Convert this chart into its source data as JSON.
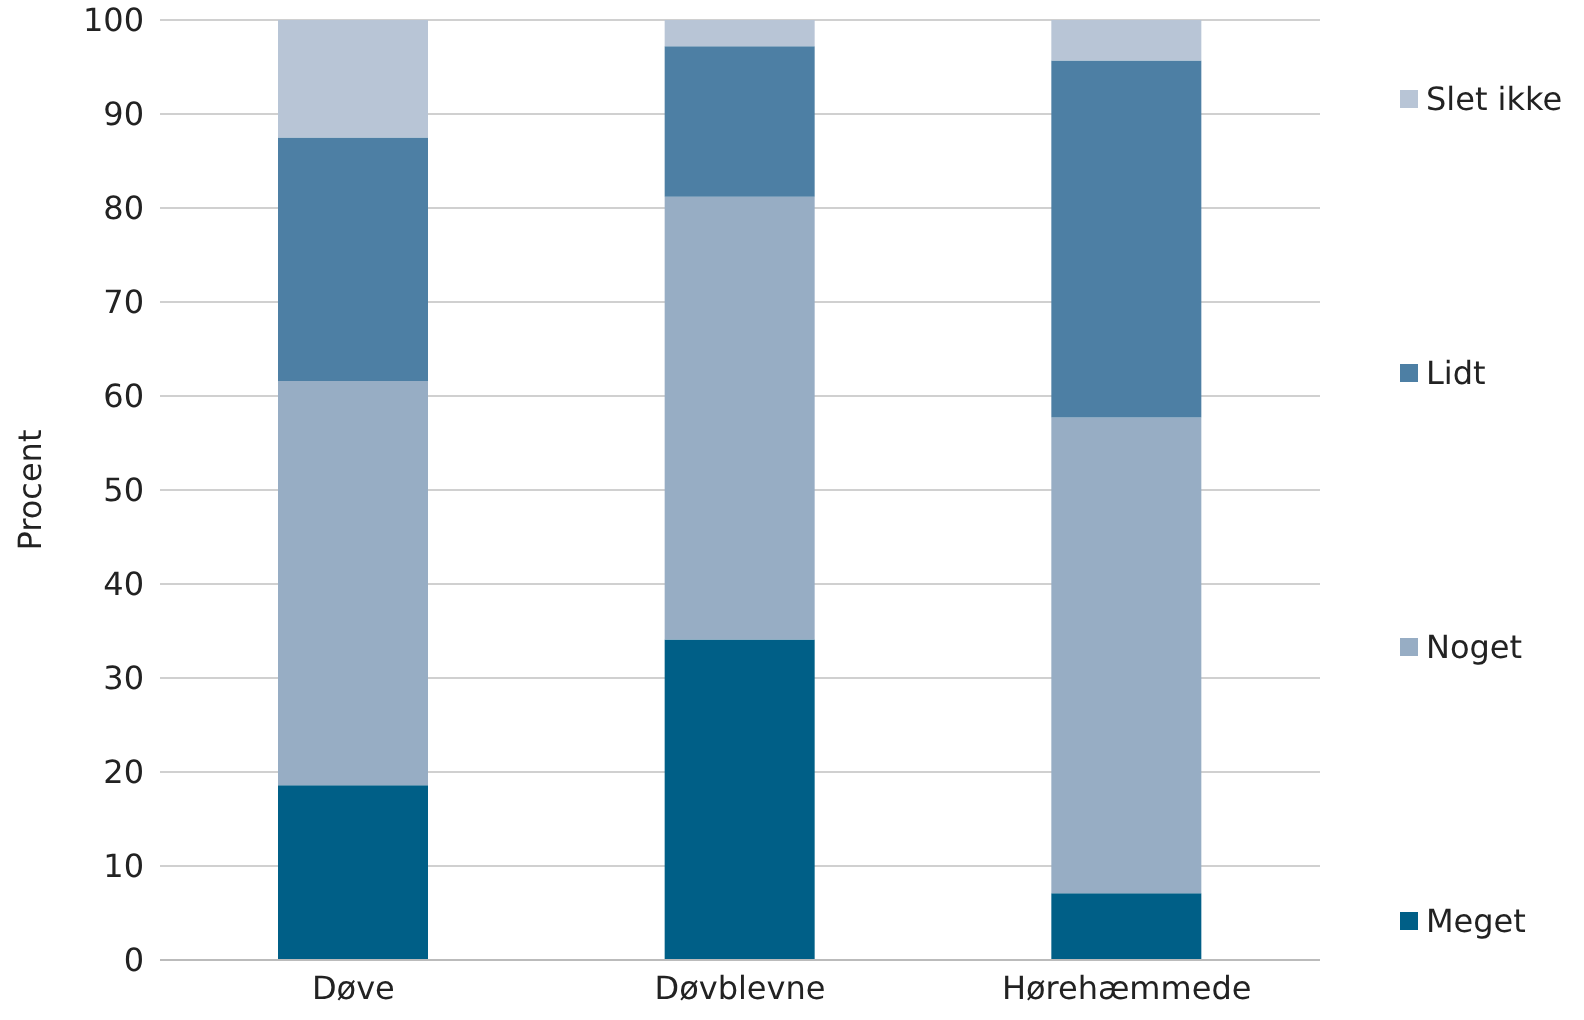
{
  "chart_data": {
    "type": "bar",
    "stacked": true,
    "ylabel": "Procent",
    "categories": [
      "Døve",
      "Døvblevne",
      "Hørehæmmede"
    ],
    "series": [
      {
        "name": "Meget",
        "color": "#005f87",
        "values": [
          18.6,
          34.1,
          7.1
        ]
      },
      {
        "name": "Noget",
        "color": "#97adc4",
        "values": [
          43.0,
          47.1,
          50.6
        ]
      },
      {
        "name": "Lidt",
        "color": "#4d7fa4",
        "values": [
          25.9,
          16.0,
          38.0
        ]
      },
      {
        "name": "Slet ikke",
        "color": "#b8c5d6",
        "values": [
          12.5,
          2.8,
          4.3
        ]
      }
    ],
    "ylim": [
      0,
      100
    ],
    "yticks": [
      0,
      10,
      20,
      30,
      40,
      50,
      60,
      70,
      80,
      90,
      100
    ],
    "grid": "y",
    "legend": "right"
  }
}
